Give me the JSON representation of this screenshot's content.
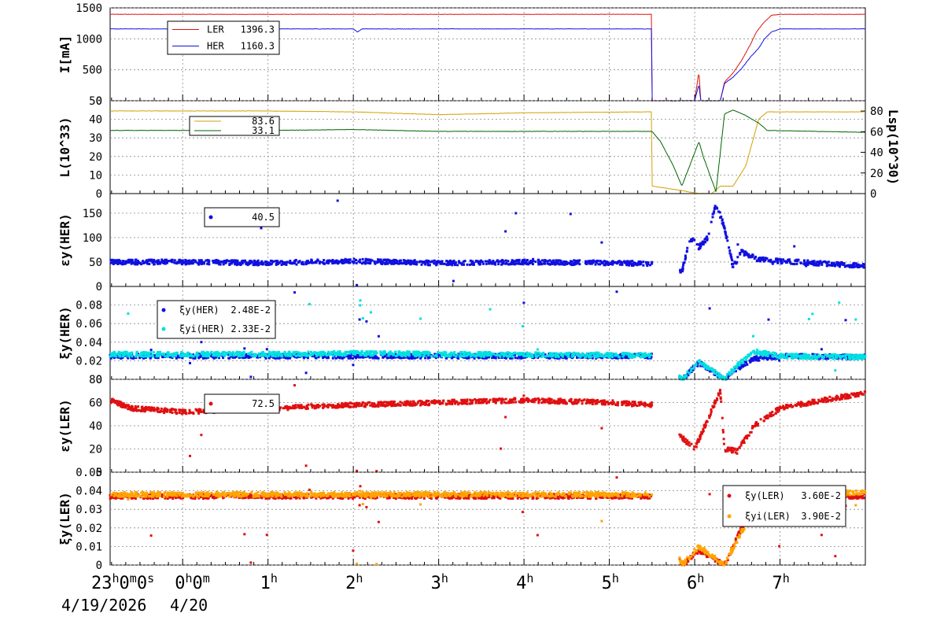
{
  "x_axis": {
    "ticks": [
      {
        "main": "23",
        "parts": [
          [
            "h",
            "0"
          ],
          [
            "m",
            "0"
          ],
          [
            "s",
            ""
          ]
        ]
      },
      {
        "main": "0",
        "parts": [
          [
            "h",
            "0"
          ],
          [
            "m",
            ""
          ]
        ]
      },
      {
        "main": "1",
        "parts": [
          [
            "h",
            ""
          ]
        ]
      },
      {
        "main": "2",
        "parts": [
          [
            "h",
            ""
          ]
        ]
      },
      {
        "main": "3",
        "parts": [
          [
            "h",
            ""
          ]
        ]
      },
      {
        "main": "4",
        "parts": [
          [
            "h",
            ""
          ]
        ]
      },
      {
        "main": "5",
        "parts": [
          [
            "h",
            ""
          ]
        ]
      },
      {
        "main": "6",
        "parts": [
          [
            "h",
            ""
          ]
        ]
      },
      {
        "main": "7",
        "parts": [
          [
            "h",
            ""
          ]
        ]
      }
    ],
    "date_start": "4/19/2026",
    "date_next": "4/20"
  },
  "chart_data": [
    {
      "type": "line",
      "ylabel": "I[mA]",
      "ylim": [
        0,
        1500
      ],
      "yticks": [
        0,
        500,
        1000,
        1500
      ],
      "grid": true,
      "legend": {
        "placement": "top-left",
        "entries": [
          {
            "name": "LER",
            "value": "1396.3",
            "color": "#e01010"
          },
          {
            "name": "HER",
            "value": "1160.3",
            "color": "#1010e0"
          }
        ]
      },
      "series": [
        {
          "name": "LER",
          "color": "#e01010",
          "points": [
            [
              -0.85,
              1396
            ],
            [
              5.5,
              1396
            ],
            [
              5.5,
              0
            ],
            [
              6.0,
              0
            ],
            [
              6.05,
              480
            ],
            [
              6.07,
              0
            ],
            [
              6.3,
              0
            ],
            [
              6.35,
              300
            ],
            [
              6.45,
              450
            ],
            [
              6.55,
              650
            ],
            [
              6.65,
              900
            ],
            [
              6.72,
              1100
            ],
            [
              6.8,
              1250
            ],
            [
              6.9,
              1380
            ],
            [
              7.0,
              1396
            ],
            [
              8.0,
              1396
            ]
          ]
        },
        {
          "name": "HER",
          "color": "#1010e0",
          "points": [
            [
              -0.85,
              1160
            ],
            [
              2.0,
              1160
            ],
            [
              2.05,
              1110
            ],
            [
              2.1,
              1160
            ],
            [
              5.5,
              1160
            ],
            [
              5.5,
              0
            ],
            [
              6.0,
              0
            ],
            [
              6.05,
              270
            ],
            [
              6.07,
              0
            ],
            [
              6.3,
              0
            ],
            [
              6.35,
              280
            ],
            [
              6.45,
              380
            ],
            [
              6.55,
              520
            ],
            [
              6.65,
              700
            ],
            [
              6.75,
              850
            ],
            [
              6.82,
              1000
            ],
            [
              6.9,
              1110
            ],
            [
              7.0,
              1160
            ],
            [
              8.0,
              1160
            ]
          ]
        }
      ]
    },
    {
      "type": "line",
      "ylabel": "L(10^33)",
      "ylim": [
        0,
        50
      ],
      "yticks": [
        0,
        10,
        20,
        30,
        40,
        50
      ],
      "right_ylabel": "Lsp(10^30)",
      "right_ylim": [
        0,
        90
      ],
      "right_yticks": [
        0,
        20,
        40,
        60,
        80
      ],
      "grid": true,
      "legend": {
        "placement": "top-left",
        "entries": [
          {
            "name": "",
            "value": "83.6",
            "color": "#d4a000"
          },
          {
            "name": "",
            "value": "33.1",
            "color": "#006400"
          }
        ]
      },
      "series": [
        {
          "name": "",
          "color": "#d4a000",
          "points": [
            [
              -0.85,
              44.5
            ],
            [
              1.0,
              44.5
            ],
            [
              2.0,
              44
            ],
            [
              3.0,
              42.5
            ],
            [
              4.0,
              43.5
            ],
            [
              5.5,
              44
            ],
            [
              5.5,
              4
            ],
            [
              5.8,
              2
            ],
            [
              6.05,
              0
            ],
            [
              6.2,
              0
            ],
            [
              6.3,
              4
            ],
            [
              6.45,
              4
            ],
            [
              6.6,
              15
            ],
            [
              6.75,
              40
            ],
            [
              6.85,
              44
            ],
            [
              8.0,
              44
            ]
          ]
        },
        {
          "name": "",
          "color": "#006400",
          "points": [
            [
              -0.85,
              34
            ],
            [
              1.0,
              34
            ],
            [
              2.0,
              34.5
            ],
            [
              3.0,
              33.5
            ],
            [
              4.0,
              33.5
            ],
            [
              5.5,
              33.5
            ],
            [
              5.6,
              28
            ],
            [
              5.75,
              15
            ],
            [
              5.85,
              4
            ],
            [
              6.05,
              28
            ],
            [
              6.1,
              20
            ],
            [
              6.25,
              1
            ],
            [
              6.35,
              43
            ],
            [
              6.45,
              45
            ],
            [
              6.6,
              42
            ],
            [
              6.75,
              38
            ],
            [
              6.85,
              34
            ],
            [
              8.0,
              33
            ]
          ]
        }
      ]
    },
    {
      "type": "scatter",
      "ylabel": "εy(HER)",
      "ylim": [
        0,
        190
      ],
      "yticks": [
        0,
        50,
        100,
        150
      ],
      "grid": true,
      "legend": {
        "placement": "top-left",
        "entries": [
          {
            "name": "",
            "value": "40.5",
            "color": "#1010e0"
          }
        ]
      },
      "series": [
        {
          "name": "",
          "color": "#1010e0",
          "points": [
            [
              -0.85,
              50
            ],
            [
              0.0,
              50
            ],
            [
              1.0,
              48
            ],
            [
              2.0,
              52
            ],
            [
              3.0,
              48
            ],
            [
              4.0,
              50
            ],
            [
              5.0,
              48
            ],
            [
              5.5,
              47
            ],
            [
              5.85,
              30
            ],
            [
              5.95,
              100
            ],
            [
              6.05,
              80
            ],
            [
              6.15,
              100
            ],
            [
              6.25,
              170
            ],
            [
              6.35,
              120
            ],
            [
              6.45,
              40
            ],
            [
              6.55,
              70
            ],
            [
              6.75,
              55
            ],
            [
              7.0,
              52
            ],
            [
              8.0,
              42
            ]
          ]
        }
      ]
    },
    {
      "type": "scatter",
      "ylabel": "ξy(HER)",
      "ylim": [
        0,
        0.1
      ],
      "yticks": [
        0,
        0.02,
        0.04,
        0.06,
        0.08
      ],
      "grid": true,
      "legend": {
        "placement": "top-left",
        "entries": [
          {
            "name": "ξy(HER)",
            "value": "2.48E-2",
            "color": "#1010e0"
          },
          {
            "name": "ξyi(HER)",
            "value": "2.33E-2",
            "color": "#00e0e0"
          }
        ]
      },
      "series": [
        {
          "name": "ξy(HER)",
          "color": "#1010e0",
          "points": [
            [
              -0.85,
              0.025
            ],
            [
              1.0,
              0.025
            ],
            [
              3.0,
              0.025
            ],
            [
              5.5,
              0.025
            ],
            [
              5.85,
              0.0
            ],
            [
              6.05,
              0.018
            ],
            [
              6.35,
              0.0
            ],
            [
              6.5,
              0.012
            ],
            [
              6.7,
              0.022
            ],
            [
              7.0,
              0.025
            ],
            [
              8.0,
              0.024
            ]
          ]
        },
        {
          "name": "ξyi(HER)",
          "color": "#00e0e0",
          "points": [
            [
              -0.85,
              0.027
            ],
            [
              1.0,
              0.027
            ],
            [
              2.0,
              0.028
            ],
            [
              3.0,
              0.027
            ],
            [
              5.5,
              0.026
            ],
            [
              5.85,
              0.0
            ],
            [
              6.05,
              0.02
            ],
            [
              6.35,
              0.0
            ],
            [
              6.5,
              0.015
            ],
            [
              6.7,
              0.03
            ],
            [
              7.0,
              0.025
            ],
            [
              8.0,
              0.024
            ]
          ]
        }
      ]
    },
    {
      "type": "scatter",
      "ylabel": "εy(LER)",
      "ylim": [
        0,
        80
      ],
      "yticks": [
        0,
        20,
        40,
        60,
        80
      ],
      "grid": true,
      "legend": {
        "placement": "top-left",
        "entries": [
          {
            "name": "",
            "value": "72.5",
            "color": "#e01010"
          }
        ]
      },
      "series": [
        {
          "name": "",
          "color": "#e01010",
          "points": [
            [
              -0.85,
              62
            ],
            [
              -0.6,
              55
            ],
            [
              0.0,
              52
            ],
            [
              1.0,
              55
            ],
            [
              2.0,
              58
            ],
            [
              3.0,
              60
            ],
            [
              4.0,
              62
            ],
            [
              5.0,
              60
            ],
            [
              5.5,
              58
            ],
            [
              5.85,
              30
            ],
            [
              6.0,
              20
            ],
            [
              6.3,
              70
            ],
            [
              6.35,
              20
            ],
            [
              6.5,
              18
            ],
            [
              6.7,
              40
            ],
            [
              7.0,
              55
            ],
            [
              7.5,
              62
            ],
            [
              8.0,
              68
            ]
          ]
        }
      ]
    },
    {
      "type": "scatter",
      "ylabel": "ξy(LER)",
      "ylim": [
        0,
        0.05
      ],
      "yticks": [
        0,
        0.01,
        0.02,
        0.03,
        0.04,
        0.05
      ],
      "grid": true,
      "legend": {
        "placement": "top-right",
        "entries": [
          {
            "name": "ξy(LER)",
            "value": "3.60E-2",
            "color": "#e01010"
          },
          {
            "name": "ξyi(LER)",
            "value": "3.90E-2",
            "color": "#ffa500"
          }
        ]
      },
      "series": [
        {
          "name": "ξy(LER)",
          "color": "#e01010",
          "points": [
            [
              -0.85,
              0.037
            ],
            [
              1.0,
              0.037
            ],
            [
              3.0,
              0.037
            ],
            [
              5.5,
              0.037
            ],
            [
              5.85,
              0.0
            ],
            [
              6.05,
              0.008
            ],
            [
              6.35,
              0.0
            ],
            [
              6.55,
              0.02
            ],
            [
              6.75,
              0.035
            ],
            [
              7.0,
              0.037
            ],
            [
              8.0,
              0.037
            ]
          ]
        },
        {
          "name": "ξyi(LER)",
          "color": "#ffa500",
          "points": [
            [
              -0.85,
              0.038
            ],
            [
              1.0,
              0.038
            ],
            [
              3.0,
              0.038
            ],
            [
              5.5,
              0.038
            ],
            [
              5.85,
              0.0
            ],
            [
              6.05,
              0.01
            ],
            [
              6.35,
              0.0
            ],
            [
              6.55,
              0.018
            ],
            [
              6.75,
              0.033
            ],
            [
              7.0,
              0.038
            ],
            [
              8.0,
              0.039
            ]
          ]
        }
      ]
    }
  ]
}
